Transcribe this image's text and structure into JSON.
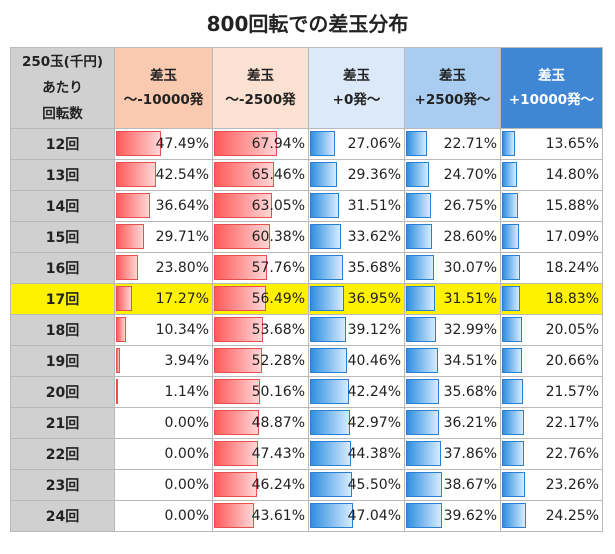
{
  "title": "800回転での差玉分布",
  "header": {
    "corner": "250玉(千円)\nあたり\n回転数",
    "columns": [
      {
        "label": "差玉\n～-10000発",
        "bg": "#f9c9b0",
        "color": "#222222",
        "bar": "neg"
      },
      {
        "label": "差玉\n～-2500発",
        "bg": "#fbe1d2",
        "color": "#222222",
        "bar": "neg"
      },
      {
        "label": "差玉\n+0発～",
        "bg": "#dce9f8",
        "color": "#222222",
        "bar": "pos"
      },
      {
        "label": "差玉\n+2500発～",
        "bg": "#a9cdf1",
        "color": "#222222",
        "bar": "pos"
      },
      {
        "label": "差玉\n+10000発～",
        "bg": "#3f86d4",
        "color": "#ffffff",
        "bar": "pos"
      }
    ]
  },
  "highlight_row": "17回",
  "colors": {
    "negative_bar": "#ff5a5a",
    "positive_bar": "#2f8fe0",
    "highlight": "#fff200",
    "row_header": "#d0d0d0"
  },
  "chart_data": {
    "type": "table",
    "title": "800回転での差玉分布",
    "unit": "%",
    "categories": [
      "12回",
      "13回",
      "14回",
      "15回",
      "16回",
      "17回",
      "18回",
      "19回",
      "20回",
      "21回",
      "22回",
      "23回",
      "24回"
    ],
    "series": [
      {
        "name": "差玉 ～-10000発",
        "display": [
          "47.49%",
          "42.54%",
          "36.64%",
          "29.71%",
          "23.80%",
          "17.27%",
          "10.34%",
          "3.94%",
          "1.14%",
          "0.00%",
          "0.00%",
          "0.00%",
          "0.00%"
        ]
      },
      {
        "name": "差玉 ～-2500発",
        "display": [
          "67.94%",
          "65.46%",
          "63.05%",
          "60.38%",
          "57.76%",
          "56.49%",
          "53.68%",
          "52.28%",
          "50.16%",
          "48.87%",
          "47.43%",
          "46.24%",
          "43.61%"
        ]
      },
      {
        "name": "差玉 +0発～",
        "display": [
          "27.06%",
          "29.36%",
          "31.51%",
          "33.62%",
          "35.68%",
          "36.95%",
          "39.12%",
          "40.46%",
          "42.24%",
          "42.97%",
          "44.38%",
          "45.50%",
          "47.04%"
        ]
      },
      {
        "name": "差玉 +2500発～",
        "display": [
          "22.71%",
          "24.70%",
          "26.75%",
          "28.60%",
          "30.07%",
          "31.51%",
          "32.99%",
          "34.51%",
          "35.68%",
          "36.21%",
          "37.86%",
          "38.67%",
          "39.62%"
        ]
      },
      {
        "name": "差玉 +10000発～",
        "display": [
          "13.65%",
          "14.80%",
          "15.88%",
          "17.09%",
          "18.24%",
          "18.83%",
          "20.05%",
          "20.66%",
          "21.57%",
          "22.17%",
          "22.76%",
          "23.26%",
          "24.25%"
        ]
      }
    ]
  }
}
